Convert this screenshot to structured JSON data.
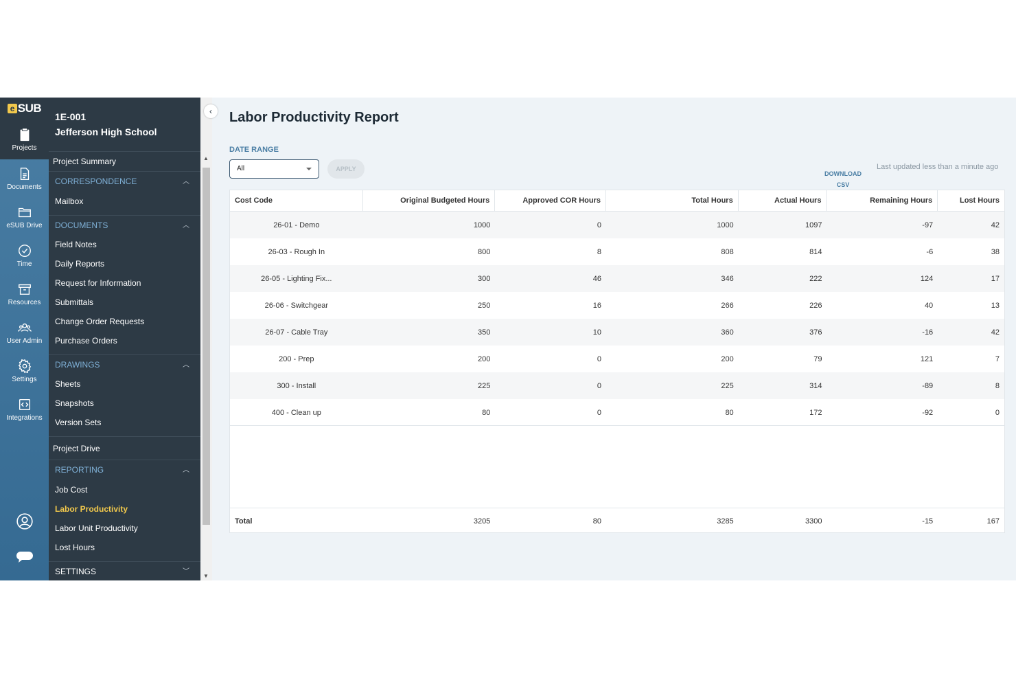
{
  "rail": {
    "logo": "SUB",
    "items": [
      {
        "label": "Projects",
        "icon": "clipboard-icon"
      },
      {
        "label": "Documents",
        "icon": "document-icon"
      },
      {
        "label": "eSUB Drive",
        "icon": "folder-icon"
      },
      {
        "label": "Time",
        "icon": "clock-icon"
      },
      {
        "label": "Resources",
        "icon": "box-icon"
      },
      {
        "label": "User Admin",
        "icon": "users-icon"
      },
      {
        "label": "Settings",
        "icon": "gear-icon"
      },
      {
        "label": "Integrations",
        "icon": "integration-icon"
      }
    ]
  },
  "project": {
    "code": "1E-001",
    "name": "Jefferson High School"
  },
  "nav": {
    "project_summary": "Project Summary",
    "correspondence": {
      "title": "CORRESPONDENCE",
      "items": [
        "Mailbox"
      ]
    },
    "documents": {
      "title": "DOCUMENTS",
      "items": [
        "Field Notes",
        "Daily Reports",
        "Request for Information",
        "Submittals",
        "Change Order Requests",
        "Purchase Orders"
      ]
    },
    "drawings": {
      "title": "DRAWINGS",
      "items": [
        "Sheets",
        "Snapshots",
        "Version Sets"
      ]
    },
    "project_drive": "Project Drive",
    "reporting": {
      "title": "REPORTING",
      "items": [
        "Job Cost",
        "Labor Productivity",
        "Labor Unit Productivity",
        "Lost Hours"
      ]
    },
    "settings": {
      "title": "SETTINGS"
    }
  },
  "main": {
    "title": "Labor Productivity Report",
    "date_range_label": "DATE RANGE",
    "date_range_value": "All",
    "apply_label": "APPLY",
    "download_line1": "DOWNLOAD",
    "download_line2": "CSV",
    "updated": "Last updated less than a minute ago"
  },
  "table": {
    "headers": [
      "Cost Code",
      "Original Budgeted Hours",
      "Approved COR Hours",
      "Total Hours",
      "Actual Hours",
      "Remaining Hours",
      "Lost Hours"
    ],
    "rows": [
      [
        "26-01 - Demo",
        "1000",
        "0",
        "1000",
        "1097",
        "-97",
        "42"
      ],
      [
        "26-03 - Rough In",
        "800",
        "8",
        "808",
        "814",
        "-6",
        "38"
      ],
      [
        "26-05 - Lighting Fix...",
        "300",
        "46",
        "346",
        "222",
        "124",
        "17"
      ],
      [
        "26-06 - Switchgear",
        "250",
        "16",
        "266",
        "226",
        "40",
        "13"
      ],
      [
        "26-07 - Cable Tray",
        "350",
        "10",
        "360",
        "376",
        "-16",
        "42"
      ],
      [
        "200 - Prep",
        "200",
        "0",
        "200",
        "79",
        "121",
        "7"
      ],
      [
        "300 - Install",
        "225",
        "0",
        "225",
        "314",
        "-89",
        "8"
      ],
      [
        "400 - Clean up",
        "80",
        "0",
        "80",
        "172",
        "-92",
        "0"
      ]
    ],
    "total": [
      "Total",
      "3205",
      "80",
      "3285",
      "3300",
      "-15",
      "167"
    ]
  }
}
